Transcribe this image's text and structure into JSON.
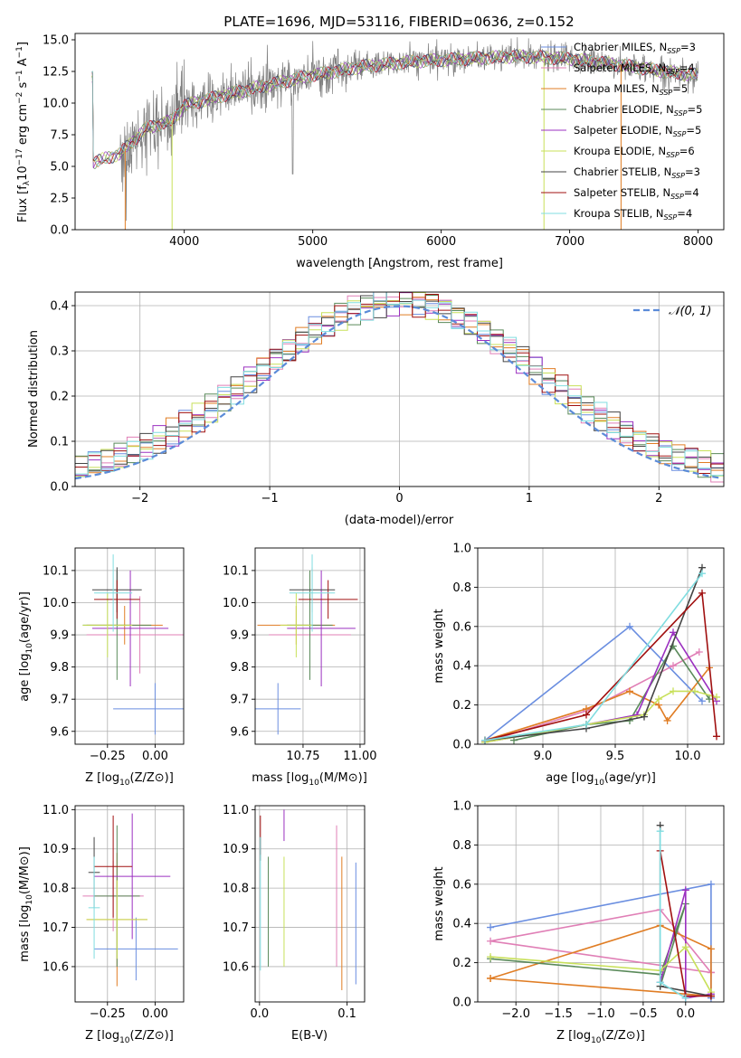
{
  "figure_title": "PLATE=1696, MJD=53116, FIBERID=0636, z=0.152",
  "colors": {
    "Chabrier MILES": "#6a8ee0",
    "Salpeter MILES": "#e07fb6",
    "Kroupa MILES": "#e07d24",
    "Chabrier ELODIE": "#5a8a5a",
    "Salpeter ELODIE": "#9b30c0",
    "Kroupa ELODIE": "#c8e05a",
    "Chabrier STELIB": "#444444",
    "Salpeter STELIB": "#a01010",
    "Kroupa STELIB": "#80dde0",
    "data": "#808080",
    "normal": "#5b8bd8"
  },
  "chart_data": [
    {
      "id": "spectrum",
      "type": "line",
      "title": "PLATE=1696, MJD=53116, FIBERID=0636, z=0.152",
      "xlabel": "wavelength [Angstrom, rest frame]",
      "ylabel": "Flux [f",
      "xlim": [
        3150,
        8200
      ],
      "ylim": [
        0,
        15.5
      ],
      "xticks": [
        4000,
        5000,
        6000,
        7000,
        8000
      ],
      "yticks": [
        0.0,
        2.5,
        5.0,
        7.5,
        10.0,
        12.5,
        15.0
      ],
      "grid": false,
      "legend_position": "top-right",
      "legend": [
        {
          "name": "Chabrier MILES, N",
          "sub": "SSP",
          "eq": "=3"
        },
        {
          "name": "Salpeter MILES, N",
          "sub": "SSP",
          "eq": "=4"
        },
        {
          "name": "Kroupa MILES, N",
          "sub": "SSP",
          "eq": "=5"
        },
        {
          "name": "Chabrier ELODIE, N",
          "sub": "SSP",
          "eq": "=5"
        },
        {
          "name": "Salpeter ELODIE, N",
          "sub": "SSP",
          "eq": "=5"
        },
        {
          "name": "Kroupa ELODIE, N",
          "sub": "SSP",
          "eq": "=6"
        },
        {
          "name": "Chabrier STELIB, N",
          "sub": "SSP",
          "eq": "=3"
        },
        {
          "name": "Salpeter STELIB, N",
          "sub": "SSP",
          "eq": "=4"
        },
        {
          "name": "Kroupa STELIB, N",
          "sub": "SSP",
          "eq": "=4"
        }
      ],
      "continuum": {
        "x": [
          3290,
          3500,
          3700,
          3900,
          4000,
          4300,
          4600,
          5000,
          5400,
          5800,
          6200,
          6600,
          7000,
          7400,
          7800,
          8000
        ],
        "y": [
          5.3,
          6.0,
          8.0,
          8.6,
          9.8,
          10.6,
          11.3,
          12.2,
          12.9,
          13.3,
          13.5,
          13.7,
          13.5,
          13.0,
          12.4,
          12.2
        ]
      },
      "model_x_range": [
        3280,
        8000
      ],
      "data_x_range": [
        3500,
        8000
      ],
      "drops": [
        {
          "x": 3540,
          "color": "Kroupa MILES"
        },
        {
          "x": 3905,
          "color": "Kroupa ELODIE"
        },
        {
          "x": 6800,
          "color": "Kroupa ELODIE"
        },
        {
          "x": 7400,
          "color": "Kroupa MILES"
        }
      ]
    },
    {
      "id": "residual_hist",
      "type": "bar",
      "xlabel": "(data-model)/error",
      "ylabel": "Normed distribution",
      "xlim": [
        -2.5,
        2.5
      ],
      "ylim": [
        0,
        0.43
      ],
      "xticks": [
        -2,
        -1,
        0,
        1,
        2
      ],
      "yticks": [
        0.0,
        0.1,
        0.2,
        0.3,
        0.4
      ],
      "grid": true,
      "bin_width": 0.1,
      "legend_position": "top-right",
      "normal_label": "𝒩(0, 1)"
    },
    {
      "id": "age_vs_Z",
      "type": "scatter",
      "xlabel": "Z [log",
      "ylabel": "age  [log",
      "xlim": [
        -0.42,
        0.15
      ],
      "ylim": [
        9.56,
        10.17
      ],
      "xticks": [
        -0.25,
        0.0
      ],
      "yticks": [
        9.6,
        9.7,
        9.8,
        9.9,
        10.0,
        10.1
      ],
      "grid": true,
      "points": [
        {
          "s": "Chabrier MILES",
          "x": 0.0,
          "y": 9.67,
          "xerr": 0.22,
          "yerr": 0.08
        },
        {
          "s": "Salpeter MILES",
          "x": -0.08,
          "y": 9.9,
          "xerr": 0.28,
          "yerr": 0.12
        },
        {
          "s": "Kroupa MILES",
          "x": -0.16,
          "y": 9.93,
          "xerr": 0.2,
          "yerr": 0.06
        },
        {
          "s": "Chabrier ELODIE",
          "x": -0.2,
          "y": 9.93,
          "xerr": 0.18,
          "yerr": 0.17
        },
        {
          "s": "Salpeter ELODIE",
          "x": -0.13,
          "y": 9.92,
          "xerr": 0.2,
          "yerr": 0.18
        },
        {
          "s": "Kroupa ELODIE",
          "x": -0.25,
          "y": 9.93,
          "xerr": 0.13,
          "yerr": 0.1
        },
        {
          "s": "Chabrier STELIB",
          "x": -0.2,
          "y": 10.04,
          "xerr": 0.13,
          "yerr": 0.07
        },
        {
          "s": "Salpeter STELIB",
          "x": -0.2,
          "y": 10.01,
          "xerr": 0.12,
          "yerr": 0.06
        },
        {
          "s": "Kroupa STELIB",
          "x": -0.22,
          "y": 10.03,
          "xerr": 0.1,
          "yerr": 0.12
        }
      ]
    },
    {
      "id": "age_vs_mass",
      "type": "scatter",
      "xlabel": "mass [log",
      "ylabel": "",
      "xlim": [
        10.54,
        11.02
      ],
      "ylim": [
        9.56,
        10.17
      ],
      "xticks": [
        10.75,
        11.0
      ],
      "yticks": [
        9.6,
        9.7,
        9.8,
        9.9,
        10.0,
        10.1
      ],
      "grid": true,
      "points": [
        {
          "s": "Chabrier MILES",
          "x": 10.64,
          "y": 9.67,
          "xerr": 0.1,
          "yerr": 0.08
        },
        {
          "s": "Salpeter MILES",
          "x": 10.78,
          "y": 9.9,
          "xerr": 0.18,
          "yerr": 0.1
        },
        {
          "s": "Kroupa MILES",
          "x": 10.72,
          "y": 9.93,
          "xerr": 0.17,
          "yerr": 0.06
        },
        {
          "s": "Chabrier ELODIE",
          "x": 10.78,
          "y": 9.93,
          "xerr": 0.1,
          "yerr": 0.17
        },
        {
          "s": "Salpeter ELODIE",
          "x": 10.83,
          "y": 9.92,
          "xerr": 0.15,
          "yerr": 0.18
        },
        {
          "s": "Kroupa ELODIE",
          "x": 10.72,
          "y": 9.93,
          "xerr": 0.07,
          "yerr": 0.1
        },
        {
          "s": "Chabrier STELIB",
          "x": 10.79,
          "y": 10.04,
          "xerr": 0.1,
          "yerr": 0.07
        },
        {
          "s": "Salpeter STELIB",
          "x": 10.86,
          "y": 10.01,
          "xerr": 0.13,
          "yerr": 0.06
        },
        {
          "s": "Kroupa STELIB",
          "x": 10.79,
          "y": 10.03,
          "xerr": 0.1,
          "yerr": 0.12
        }
      ]
    },
    {
      "id": "weight_vs_age",
      "type": "line",
      "xlabel": "age  [log",
      "ylabel": "mass weight",
      "xlim": [
        8.55,
        10.25
      ],
      "ylim": [
        0,
        1.0
      ],
      "xticks": [
        9.0,
        9.5,
        10.0
      ],
      "yticks": [
        0.0,
        0.2,
        0.4,
        0.6,
        0.8,
        1.0
      ],
      "grid": true,
      "series": [
        {
          "s": "Chabrier MILES",
          "x": [
            8.6,
            9.6,
            10.1
          ],
          "y": [
            0.02,
            0.6,
            0.22
          ]
        },
        {
          "s": "Salpeter MILES",
          "x": [
            8.6,
            9.3,
            9.9,
            10.08
          ],
          "y": [
            0.01,
            0.17,
            0.4,
            0.47
          ]
        },
        {
          "s": "Kroupa MILES",
          "x": [
            8.6,
            9.3,
            9.6,
            9.8,
            9.86,
            10.15
          ],
          "y": [
            0.02,
            0.18,
            0.27,
            0.2,
            0.12,
            0.39
          ]
        },
        {
          "s": "Chabrier ELODIE",
          "x": [
            8.8,
            9.3,
            9.6,
            9.9,
            10.15
          ],
          "y": [
            0.02,
            0.1,
            0.12,
            0.5,
            0.23
          ]
        },
        {
          "s": "Salpeter ELODIE",
          "x": [
            8.6,
            9.3,
            9.65,
            9.9,
            10.2
          ],
          "y": [
            0.01,
            0.1,
            0.15,
            0.57,
            0.22
          ]
        },
        {
          "s": "Kroupa ELODIE",
          "x": [
            8.6,
            9.3,
            9.7,
            9.8,
            9.9,
            10.05,
            10.2
          ],
          "y": [
            0.01,
            0.1,
            0.15,
            0.23,
            0.27,
            0.27,
            0.24
          ]
        },
        {
          "s": "Chabrier STELIB",
          "x": [
            8.6,
            9.3,
            9.7,
            10.1
          ],
          "y": [
            0.02,
            0.08,
            0.14,
            0.9
          ]
        },
        {
          "s": "Salpeter STELIB",
          "x": [
            8.6,
            9.3,
            10.1,
            10.2
          ],
          "y": [
            0.02,
            0.15,
            0.77,
            0.04
          ]
        },
        {
          "s": "Kroupa STELIB",
          "x": [
            8.6,
            9.3,
            10.1
          ],
          "y": [
            0.02,
            0.1,
            0.87
          ]
        }
      ]
    },
    {
      "id": "mass_vs_Z",
      "type": "scatter",
      "xlabel": "Z [log",
      "ylabel": "mass [log",
      "xlim": [
        -0.42,
        0.15
      ],
      "ylim": [
        10.51,
        11.01
      ],
      "xticks": [
        -0.25,
        0.0
      ],
      "yticks": [
        10.6,
        10.7,
        10.8,
        10.9,
        11.0
      ],
      "grid": true,
      "points": [
        {
          "s": "Chabrier MILES",
          "x": -0.1,
          "y": 10.645,
          "xerr": 0.22,
          "yerr": 0.08
        },
        {
          "s": "Salpeter MILES",
          "x": -0.22,
          "y": 10.78,
          "xerr": 0.16,
          "yerr": 0.09
        },
        {
          "s": "Kroupa MILES",
          "x": -0.2,
          "y": 10.72,
          "xerr": 0.16,
          "yerr": 0.17
        },
        {
          "s": "Chabrier ELODIE",
          "x": -0.2,
          "y": 10.78,
          "xerr": 0.12,
          "yerr": 0.18
        },
        {
          "s": "Salpeter ELODIE",
          "x": -0.12,
          "y": 10.83,
          "xerr": 0.2,
          "yerr": 0.16
        },
        {
          "s": "Kroupa ELODIE",
          "x": -0.2,
          "y": 10.72,
          "xerr": 0.16,
          "yerr": 0.1
        },
        {
          "s": "Chabrier STELIB",
          "x": -0.32,
          "y": 10.84,
          "xerr": 0.03,
          "yerr": 0.09
        },
        {
          "s": "Salpeter STELIB",
          "x": -0.22,
          "y": 10.855,
          "xerr": 0.1,
          "yerr": 0.13
        },
        {
          "s": "Kroupa STELIB",
          "x": -0.32,
          "y": 10.75,
          "xerr": 0.03,
          "yerr": 0.13
        }
      ]
    },
    {
      "id": "mass_vs_EBV",
      "type": "scatter",
      "xlabel": "E(B-V)",
      "ylabel": "",
      "xlim": [
        -0.005,
        0.12
      ],
      "ylim": [
        10.51,
        11.01
      ],
      "xticks": [
        0.0,
        0.1
      ],
      "yticks": [
        10.6,
        10.7,
        10.8,
        10.9,
        11.0
      ],
      "grid": true,
      "points": [
        {
          "s": "Chabrier MILES",
          "x": 0.11,
          "y": 10.71,
          "xerr": 0,
          "yerr": 0.155
        },
        {
          "s": "Salpeter MILES",
          "x": 0.088,
          "y": 10.78,
          "xerr": 0,
          "yerr": 0.18
        },
        {
          "s": "Kroupa MILES",
          "x": 0.094,
          "y": 10.71,
          "xerr": 0,
          "yerr": 0.17
        },
        {
          "s": "Chabrier ELODIE",
          "x": 0.01,
          "y": 10.74,
          "xerr": 0,
          "yerr": 0.14
        },
        {
          "s": "Salpeter ELODIE",
          "x": 0.028,
          "y": 10.96,
          "xerr": 0,
          "yerr": 0.04
        },
        {
          "s": "Kroupa ELODIE",
          "x": 0.028,
          "y": 10.74,
          "xerr": 0,
          "yerr": 0.14
        },
        {
          "s": "Chabrier STELIB",
          "x": 0.001,
          "y": 10.9,
          "xerr": 0,
          "yerr": 0.03
        },
        {
          "s": "Salpeter STELIB",
          "x": 0.001,
          "y": 10.935,
          "xerr": 0,
          "yerr": 0.05
        },
        {
          "s": "Kroupa STELIB",
          "x": 0.001,
          "y": 10.76,
          "xerr": 0,
          "yerr": 0.17
        }
      ]
    },
    {
      "id": "weight_vs_Z",
      "type": "line",
      "xlabel": "Z [log",
      "ylabel": "mass weight",
      "xlim": [
        -2.45,
        0.45
      ],
      "ylim": [
        0,
        1.0
      ],
      "xticks": [
        -2.0,
        -1.5,
        -1.0,
        -0.5,
        0.0
      ],
      "yticks": [
        0.0,
        0.2,
        0.4,
        0.6,
        0.8,
        1.0
      ],
      "grid": true,
      "series": [
        {
          "s": "Chabrier MILES",
          "x": [
            0.3,
            0.3,
            -2.3
          ],
          "y": [
            0.02,
            0.6,
            0.38
          ]
        },
        {
          "s": "Salpeter MILES",
          "x": [
            0.3,
            -0.3,
            -2.3,
            0.3
          ],
          "y": [
            0.15,
            0.47,
            0.31,
            0.15
          ]
        },
        {
          "s": "Kroupa MILES",
          "x": [
            -2.3,
            -0.3,
            0.3,
            0.3,
            -2.3
          ],
          "y": [
            0.12,
            0.39,
            0.27,
            0.03,
            0.12
          ]
        },
        {
          "s": "Chabrier ELODIE",
          "x": [
            -2.3,
            -0.3,
            0.0,
            -0.3
          ],
          "y": [
            0.22,
            0.14,
            0.5,
            0.08
          ]
        },
        {
          "s": "Salpeter ELODIE",
          "x": [
            -0.3,
            0.0,
            0.0,
            0.3
          ],
          "y": [
            0.1,
            0.57,
            0.02,
            0.04
          ]
        },
        {
          "s": "Kroupa ELODIE",
          "x": [
            -2.3,
            -0.3,
            0.0,
            0.3
          ],
          "y": [
            0.23,
            0.16,
            0.28,
            0.05
          ]
        },
        {
          "s": "Chabrier STELIB",
          "x": [
            -0.3,
            -0.3,
            0.3
          ],
          "y": [
            0.9,
            0.08,
            0.03
          ]
        },
        {
          "s": "Salpeter STELIB",
          "x": [
            -0.3,
            0.0,
            0.3
          ],
          "y": [
            0.77,
            0.03,
            0.03
          ]
        },
        {
          "s": "Kroupa STELIB",
          "x": [
            -0.3,
            -0.3,
            0.0
          ],
          "y": [
            0.87,
            0.1,
            0.02
          ]
        }
      ]
    }
  ]
}
